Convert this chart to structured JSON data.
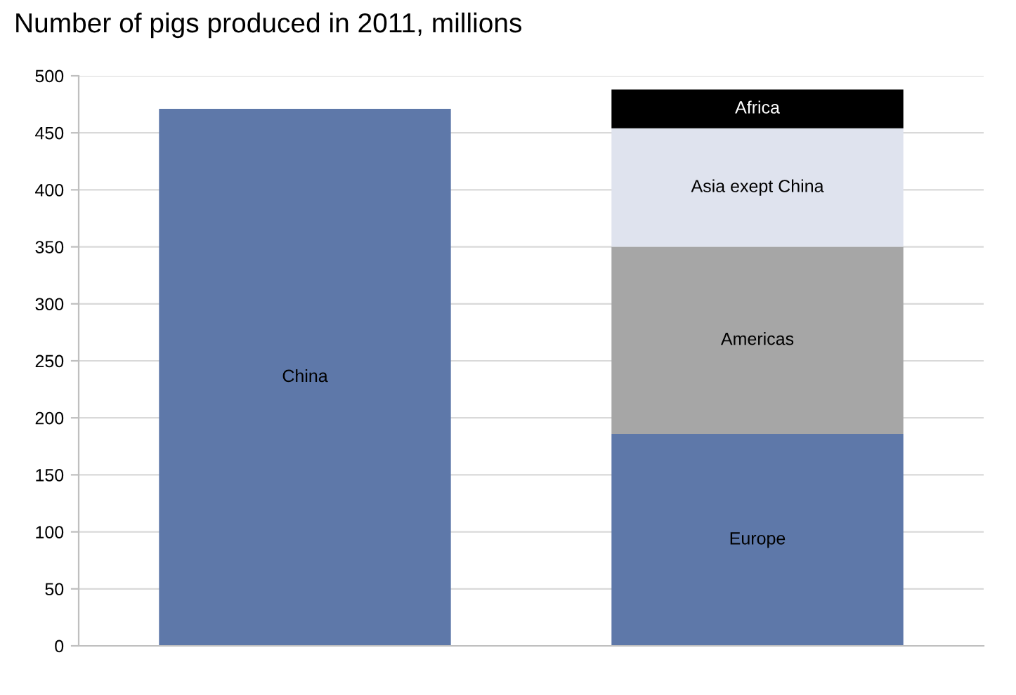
{
  "chart_data": {
    "type": "bar",
    "title": "Number of pigs produced in 2011, millions",
    "stacked": true,
    "categories": [
      null,
      null
    ],
    "series": [
      {
        "name": "China",
        "color": "#5e78a9",
        "values": [
          471,
          null
        ]
      },
      {
        "name": "Europe",
        "color": "#5e78a9",
        "values": [
          null,
          186
        ]
      },
      {
        "name": "Americas",
        "color": "#a6a6a6",
        "values": [
          null,
          164
        ]
      },
      {
        "name": "Asia exept China",
        "color": "#dfe3ee",
        "values": [
          null,
          104
        ]
      },
      {
        "name": "Africa",
        "color": "#000000",
        "values": [
          null,
          34
        ]
      }
    ],
    "ylim": [
      0,
      500
    ],
    "yticks": [
      0,
      50,
      100,
      150,
      200,
      250,
      300,
      350,
      400,
      450,
      500
    ],
    "grid": "y",
    "legend": false
  }
}
